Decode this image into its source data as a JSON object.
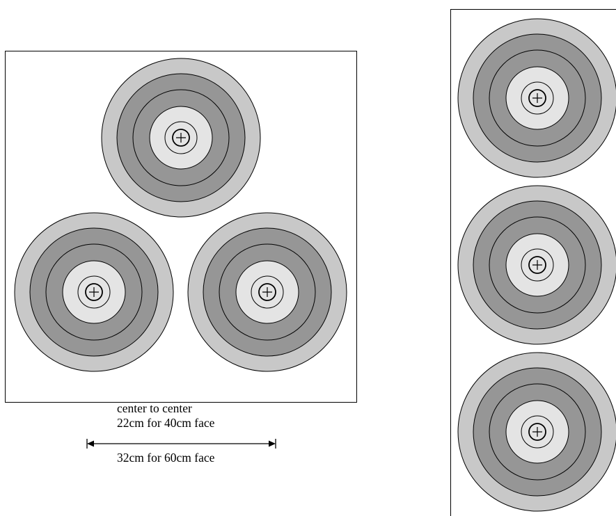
{
  "diagram": {
    "caption_line1": "center to center",
    "caption_line2": "22cm for 40cm face",
    "caption_line3": "32cm for 60cm face",
    "colors": {
      "outer_ring": "#c8c8c8",
      "middle_rings": "#969696",
      "inner_ring": "#e4e4e4",
      "stroke": "#000000",
      "background": "#ffffff"
    },
    "triangle_panel": {
      "face_count": 3,
      "arrangement": "triangle"
    },
    "vertical_panel": {
      "face_count": 3,
      "arrangement": "vertical"
    }
  }
}
